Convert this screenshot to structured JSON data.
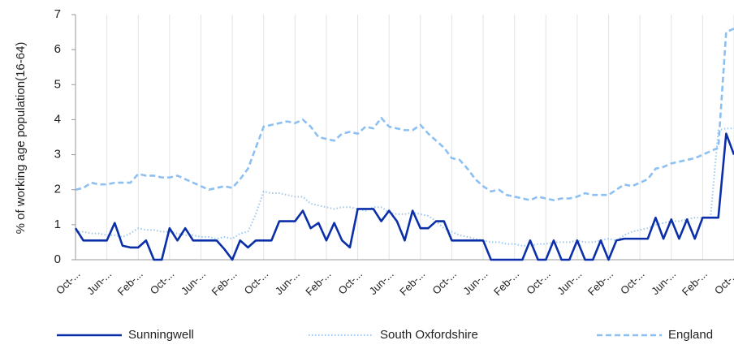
{
  "chart_data": {
    "type": "line",
    "y_label": "% of working age population(16-64)",
    "categories": [
      "Oct-...",
      null,
      null,
      null,
      "Jun-...",
      null,
      null,
      null,
      "Feb-...",
      null,
      null,
      null,
      "Oct-...",
      null,
      null,
      null,
      "Jun-...",
      null,
      null,
      null,
      "Feb-...",
      null,
      null,
      null,
      "Oct-...",
      null,
      null,
      null,
      "Jun-...",
      null,
      null,
      null,
      "Feb-...",
      null,
      null,
      null,
      "Oct-...",
      null,
      null,
      null,
      "Jun-...",
      null,
      null,
      null,
      "Feb-...",
      null,
      null,
      null,
      "Oct-...",
      null,
      null,
      null,
      "Jun-...",
      null,
      null,
      null,
      "Feb-...",
      null,
      null,
      null,
      "Oct-...",
      null,
      null,
      null,
      "Jun-...",
      null,
      null,
      null,
      "Feb-...",
      null,
      null,
      null,
      "Oct-...",
      null,
      null,
      null,
      "Jun-...",
      null,
      null,
      null,
      "Feb-...",
      null,
      null,
      null,
      "Oct-..."
    ],
    "series": [
      {
        "name": "Sunningwell",
        "color": "#0b2fa8",
        "style": "solid",
        "values": [
          0.9,
          0.55,
          0.55,
          0.55,
          0.55,
          1.05,
          0.4,
          0.35,
          0.35,
          0.55,
          0,
          0,
          0.9,
          0.55,
          0.9,
          0.55,
          0.55,
          0.55,
          0.55,
          0.3,
          0,
          0.55,
          0.35,
          0.55,
          0.55,
          0.55,
          1.1,
          1.1,
          1.1,
          1.4,
          0.9,
          1.05,
          0.55,
          1.05,
          0.55,
          0.35,
          1.45,
          1.45,
          1.45,
          1.1,
          1.4,
          1.1,
          0.55,
          1.4,
          0.9,
          0.9,
          1.1,
          1.1,
          0.55,
          0.55,
          0.55,
          0.55,
          0.55,
          0,
          0,
          0,
          0,
          0,
          0.55,
          0,
          0,
          0.55,
          0,
          0,
          0.55,
          0,
          0,
          0.55,
          0,
          0.55,
          0.6,
          0.6,
          0.6,
          0.6,
          1.2,
          0.6,
          1.15,
          0.6,
          1.15,
          0.6,
          1.2,
          1.2,
          1.2,
          3.6,
          3.0
        ]
      },
      {
        "name": "South Oxfordshire",
        "color": "#9cc8f0",
        "style": "dotted",
        "values": [
          0.8,
          0.8,
          0.75,
          0.75,
          0.7,
          0.7,
          0.65,
          0.75,
          0.9,
          0.85,
          0.85,
          0.8,
          0.8,
          0.75,
          0.7,
          0.7,
          0.65,
          0.65,
          0.6,
          0.65,
          0.6,
          0.75,
          0.8,
          1.3,
          1.95,
          1.9,
          1.9,
          1.85,
          1.8,
          1.8,
          1.6,
          1.55,
          1.5,
          1.45,
          1.5,
          1.5,
          1.45,
          1.4,
          1.5,
          1.5,
          1.35,
          1.3,
          1.3,
          1.35,
          1.3,
          1.25,
          1.1,
          0.9,
          0.8,
          0.7,
          0.65,
          0.6,
          0.55,
          0.5,
          0.5,
          0.45,
          0.45,
          0.4,
          0.4,
          0.45,
          0.45,
          0.5,
          0.5,
          0.5,
          0.55,
          0.5,
          0.5,
          0.55,
          0.6,
          0.55,
          0.7,
          0.8,
          0.85,
          0.9,
          1.0,
          1.05,
          1.1,
          1.1,
          1.15,
          1.2,
          1.2,
          1.2,
          3.7,
          3.75,
          3.75
        ]
      },
      {
        "name": "England",
        "color": "#8cc0f2",
        "style": "dashed",
        "values": [
          2.0,
          2.05,
          2.2,
          2.15,
          2.15,
          2.2,
          2.2,
          2.2,
          2.45,
          2.4,
          2.4,
          2.35,
          2.35,
          2.4,
          2.3,
          2.2,
          2.1,
          2.0,
          2.05,
          2.1,
          2.05,
          2.3,
          2.6,
          3.2,
          3.8,
          3.85,
          3.9,
          3.95,
          3.9,
          4.0,
          3.8,
          3.5,
          3.45,
          3.4,
          3.6,
          3.65,
          3.6,
          3.8,
          3.75,
          4.05,
          3.8,
          3.75,
          3.7,
          3.7,
          3.85,
          3.6,
          3.4,
          3.2,
          2.9,
          2.85,
          2.6,
          2.3,
          2.1,
          1.95,
          2.0,
          1.85,
          1.8,
          1.75,
          1.7,
          1.8,
          1.75,
          1.7,
          1.75,
          1.75,
          1.8,
          1.9,
          1.85,
          1.85,
          1.85,
          2.0,
          2.15,
          2.1,
          2.2,
          2.3,
          2.6,
          2.65,
          2.75,
          2.8,
          2.85,
          2.9,
          3.0,
          3.1,
          3.2,
          6.5,
          6.6
        ]
      }
    ],
    "ylim": [
      0,
      7
    ],
    "yticks": [
      0,
      1,
      2,
      3,
      4,
      5,
      6,
      7
    ],
    "grid": true,
    "legend": "bottom"
  }
}
